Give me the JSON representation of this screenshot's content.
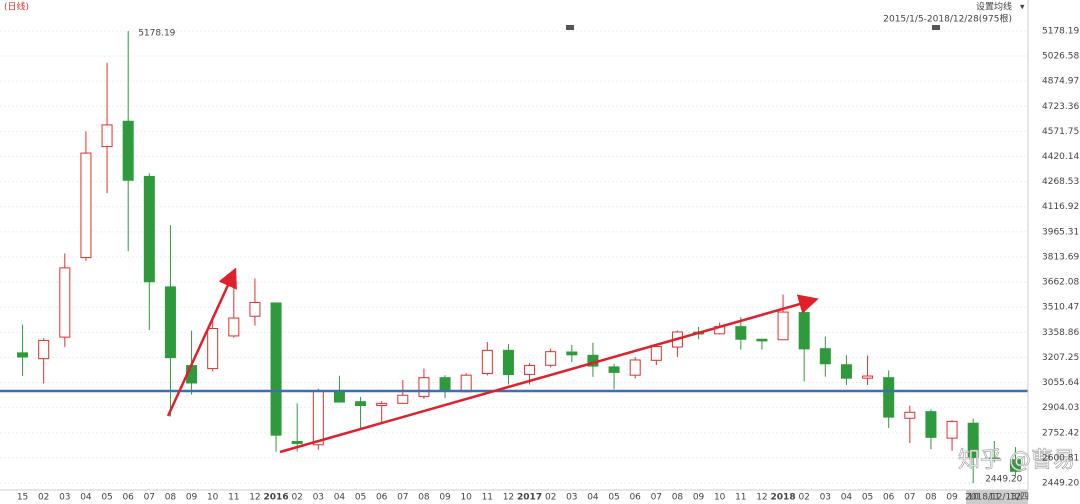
{
  "header": {
    "period": "(日线)",
    "ma_button": "设置均线",
    "range": "2015/1/5-2018/12/28(975根)"
  },
  "watermark": "知乎 @曹易",
  "cursor_date": "2018/12/13/四",
  "chart_data": {
    "type": "candlestick",
    "categories": [
      "15",
      "02",
      "03",
      "04",
      "05",
      "06",
      "07",
      "08",
      "09",
      "10",
      "11",
      "12",
      "2016",
      "02",
      "03",
      "04",
      "05",
      "06",
      "07",
      "08",
      "09",
      "10",
      "11",
      "12",
      "2017",
      "02",
      "03",
      "04",
      "05",
      "06",
      "07",
      "08",
      "09",
      "10",
      "11",
      "12",
      "2018",
      "02",
      "03",
      "04",
      "05",
      "06",
      "07",
      "08",
      "09",
      "10",
      "11",
      "12"
    ],
    "ohlc": [
      [
        3235,
        3406,
        3095,
        3210
      ],
      [
        3200,
        3324,
        3050,
        3310
      ],
      [
        3330,
        3835,
        3270,
        3748
      ],
      [
        3810,
        4572,
        3790,
        4441
      ],
      [
        4480,
        4986,
        4199,
        4611
      ],
      [
        4633,
        5178.19,
        3848,
        4277
      ],
      [
        4300,
        4318,
        3373,
        3664
      ],
      [
        3633,
        4006,
        2851,
        3206
      ],
      [
        3158,
        3369,
        2983,
        3053
      ],
      [
        3140,
        3459,
        3123,
        3382
      ],
      [
        3337,
        3678,
        3327,
        3445
      ],
      [
        3456,
        3684,
        3400,
        3539
      ],
      [
        3536,
        3539,
        2638,
        2738
      ],
      [
        2700,
        2930,
        2639,
        2688
      ],
      [
        2680,
        3018,
        2650,
        3004
      ],
      [
        3000,
        3097,
        2936,
        2938
      ],
      [
        2940,
        2970,
        2781,
        2917
      ],
      [
        2917,
        2943,
        2808,
        2930
      ],
      [
        2930,
        3071,
        2931,
        2979
      ],
      [
        2972,
        3140,
        2957,
        3085
      ],
      [
        3085,
        3100,
        2961,
        3005
      ],
      [
        3000,
        3113,
        2999,
        3100
      ],
      [
        3110,
        3301,
        3098,
        3250
      ],
      [
        3250,
        3288,
        3044,
        3104
      ],
      [
        3105,
        3173,
        3044,
        3159
      ],
      [
        3160,
        3260,
        3147,
        3242
      ],
      [
        3240,
        3283,
        3180,
        3223
      ],
      [
        3220,
        3296,
        3090,
        3155
      ],
      [
        3150,
        3168,
        3016,
        3117
      ],
      [
        3100,
        3210,
        3080,
        3192
      ],
      [
        3190,
        3290,
        3160,
        3273
      ],
      [
        3270,
        3370,
        3210,
        3361
      ],
      [
        3360,
        3391,
        3317,
        3349
      ],
      [
        3350,
        3418,
        3345,
        3393
      ],
      [
        3393,
        3450,
        3254,
        3317
      ],
      [
        3317,
        3320,
        3254,
        3307
      ],
      [
        3314,
        3587,
        3314,
        3481
      ],
      [
        3478,
        3495,
        3062,
        3259
      ],
      [
        3260,
        3333,
        3091,
        3169
      ],
      [
        3163,
        3220,
        3041,
        3082
      ],
      [
        3082,
        3219,
        3041,
        3095
      ],
      [
        3085,
        3129,
        2782,
        2847
      ],
      [
        2840,
        2915,
        2691,
        2876
      ],
      [
        2880,
        2894,
        2653,
        2725
      ],
      [
        2720,
        2827,
        2644,
        2821
      ],
      [
        2810,
        2838,
        2449.2,
        2603
      ],
      [
        2600,
        2703,
        2575,
        2588
      ],
      [
        2590,
        2666,
        2494,
        2520
      ]
    ],
    "up_color": "#e0302c",
    "down_color": "#2e9a3c",
    "high_label": "5178.19",
    "low_label": "2449.20",
    "ylim": [
      2407,
      5365
    ],
    "yticks": [
      5178.19,
      5026.58,
      4874.97,
      4723.36,
      4571.75,
      4420.14,
      4268.53,
      4116.92,
      3965.31,
      3813.69,
      3662.08,
      3510.47,
      3358.86,
      3207.25,
      3055.64,
      2904.03,
      2752.42,
      2600.81,
      {
        "value": 2449.2,
        "label": "2449.20"
      }
    ],
    "grid": true
  }
}
